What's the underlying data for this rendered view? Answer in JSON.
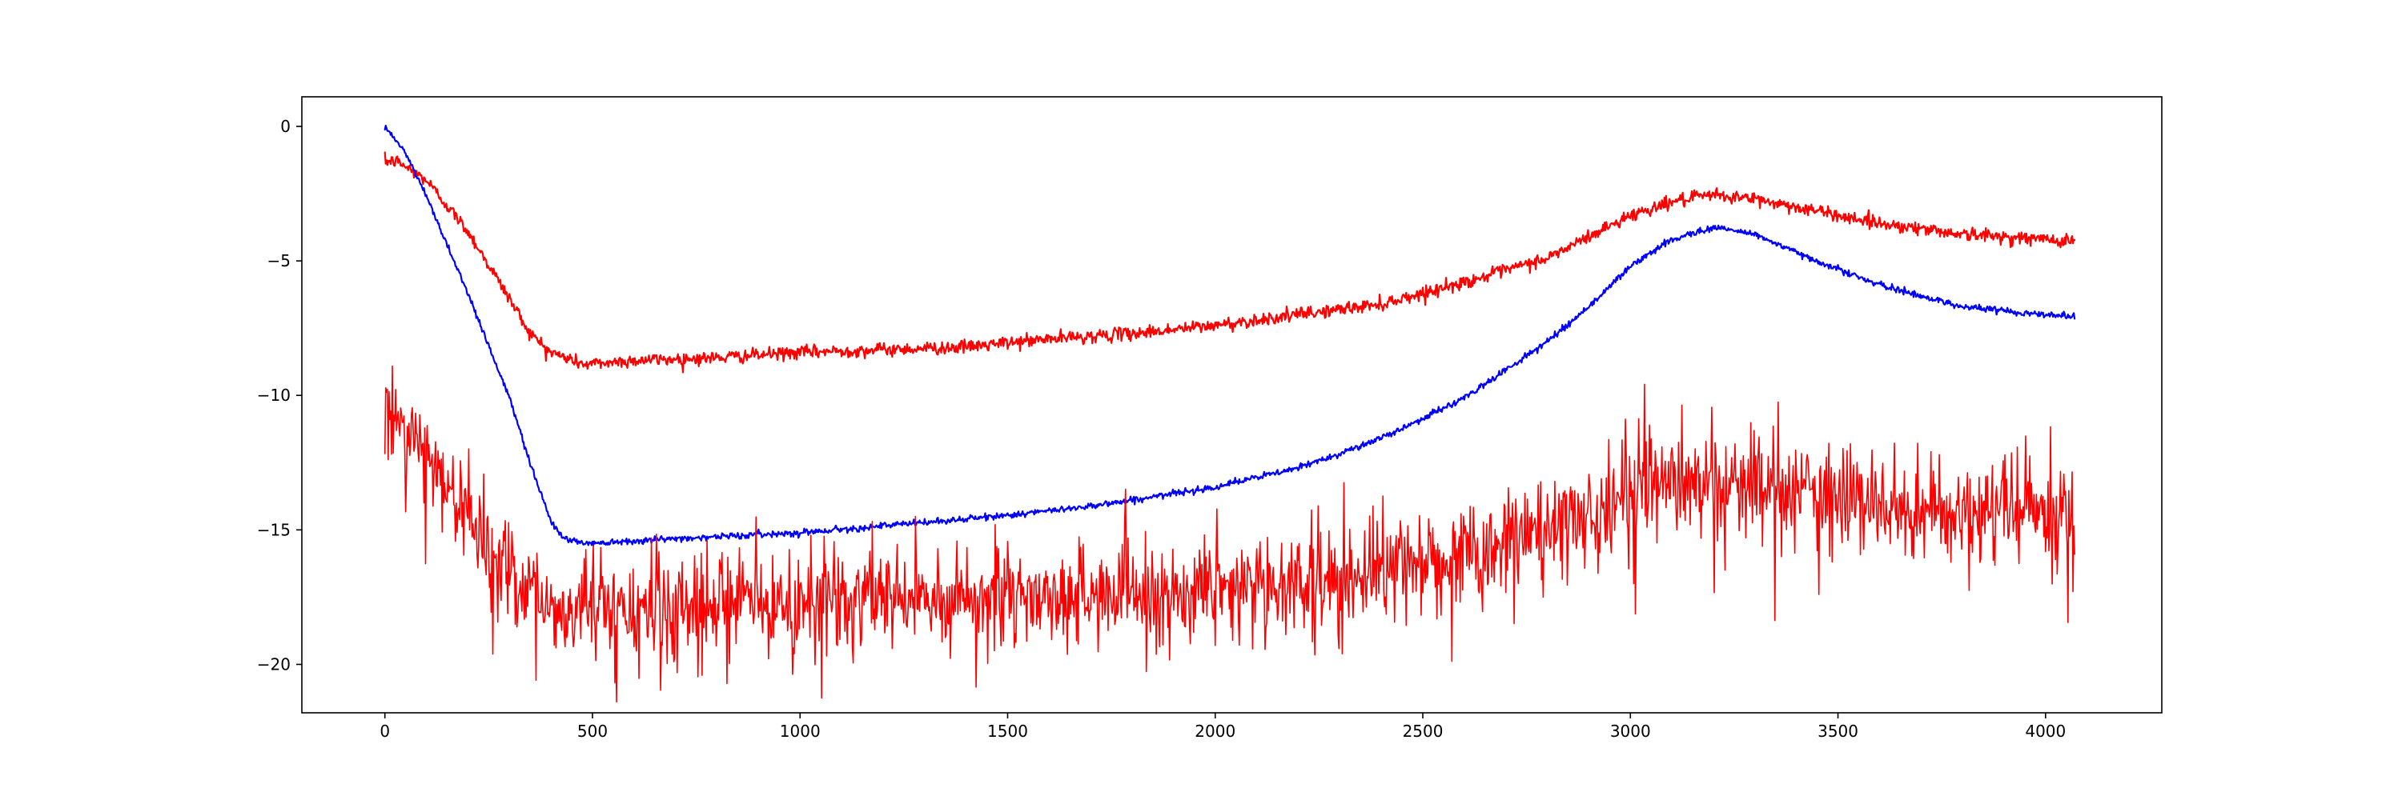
{
  "chart_data": {
    "type": "line",
    "title": "",
    "xlabel": "",
    "ylabel": "",
    "xlim": [
      -200,
      4280
    ],
    "ylim": [
      -21.8,
      1.1
    ],
    "xticks": [
      0,
      500,
      1000,
      1500,
      2000,
      2500,
      3000,
      3500,
      4000
    ],
    "yticks": [
      0,
      -5,
      -10,
      -15,
      -20
    ],
    "xtick_labels": [
      "0",
      "500",
      "1000",
      "1500",
      "2000",
      "2500",
      "3000",
      "3500",
      "4000"
    ],
    "ytick_labels": [
      "0",
      "−5",
      "−10",
      "−15",
      "−20"
    ],
    "grid": false,
    "legend": "none",
    "x_range": [
      0,
      4070
    ],
    "series": [
      {
        "color": "#ff0000",
        "style": "smooth",
        "noise": 0.12,
        "keypoints": [
          [
            0,
            -1.3
          ],
          [
            30,
            -1.3
          ],
          [
            100,
            -2.0
          ],
          [
            200,
            -3.9
          ],
          [
            300,
            -6.4
          ],
          [
            350,
            -7.7
          ],
          [
            400,
            -8.4
          ],
          [
            480,
            -8.85
          ],
          [
            600,
            -8.7
          ],
          [
            800,
            -8.6
          ],
          [
            1000,
            -8.4
          ],
          [
            1200,
            -8.3
          ],
          [
            1400,
            -8.2
          ],
          [
            1600,
            -7.9
          ],
          [
            1800,
            -7.7
          ],
          [
            2000,
            -7.4
          ],
          [
            2200,
            -7.0
          ],
          [
            2400,
            -6.6
          ],
          [
            2600,
            -5.8
          ],
          [
            2800,
            -4.9
          ],
          [
            3000,
            -3.3
          ],
          [
            3100,
            -2.8
          ],
          [
            3200,
            -2.55
          ],
          [
            3300,
            -2.7
          ],
          [
            3400,
            -3.0
          ],
          [
            3600,
            -3.6
          ],
          [
            3800,
            -4.0
          ],
          [
            4000,
            -4.2
          ],
          [
            4070,
            -4.25
          ]
        ]
      },
      {
        "color": "#0000ff",
        "style": "smooth",
        "noise": 0.06,
        "keypoints": [
          [
            0,
            0.0
          ],
          [
            50,
            -1.0
          ],
          [
            100,
            -2.6
          ],
          [
            200,
            -6.2
          ],
          [
            300,
            -10.1
          ],
          [
            350,
            -12.5
          ],
          [
            400,
            -14.7
          ],
          [
            430,
            -15.3
          ],
          [
            480,
            -15.5
          ],
          [
            600,
            -15.4
          ],
          [
            800,
            -15.25
          ],
          [
            1000,
            -15.1
          ],
          [
            1200,
            -14.85
          ],
          [
            1400,
            -14.6
          ],
          [
            1600,
            -14.3
          ],
          [
            1800,
            -13.9
          ],
          [
            2000,
            -13.4
          ],
          [
            2200,
            -12.7
          ],
          [
            2400,
            -11.6
          ],
          [
            2600,
            -10.1
          ],
          [
            2800,
            -8.0
          ],
          [
            2900,
            -6.7
          ],
          [
            3000,
            -5.2
          ],
          [
            3100,
            -4.2
          ],
          [
            3200,
            -3.75
          ],
          [
            3300,
            -4.0
          ],
          [
            3400,
            -4.7
          ],
          [
            3600,
            -5.9
          ],
          [
            3800,
            -6.7
          ],
          [
            4000,
            -7.0
          ],
          [
            4070,
            -7.05
          ]
        ]
      },
      {
        "color": "#ff0000",
        "style": "noisy",
        "noise": 1.0,
        "keypoints": [
          [
            0,
            -10.8
          ],
          [
            100,
            -12.2
          ],
          [
            200,
            -14.5
          ],
          [
            300,
            -16.6
          ],
          [
            400,
            -17.9
          ],
          [
            500,
            -18.0
          ],
          [
            800,
            -17.9
          ],
          [
            1000,
            -17.8
          ],
          [
            1200,
            -17.6
          ],
          [
            1400,
            -17.5
          ],
          [
            1600,
            -17.5
          ],
          [
            1800,
            -17.4
          ],
          [
            2000,
            -17.2
          ],
          [
            2200,
            -17.0
          ],
          [
            2400,
            -16.7
          ],
          [
            2600,
            -16.0
          ],
          [
            2800,
            -15.0
          ],
          [
            2900,
            -14.4
          ],
          [
            3000,
            -13.9
          ],
          [
            3100,
            -13.4
          ],
          [
            3200,
            -13.3
          ],
          [
            3300,
            -13.4
          ],
          [
            3400,
            -13.6
          ],
          [
            3600,
            -14.0
          ],
          [
            3800,
            -14.3
          ],
          [
            4000,
            -14.5
          ],
          [
            4070,
            -14.6
          ]
        ]
      }
    ]
  }
}
